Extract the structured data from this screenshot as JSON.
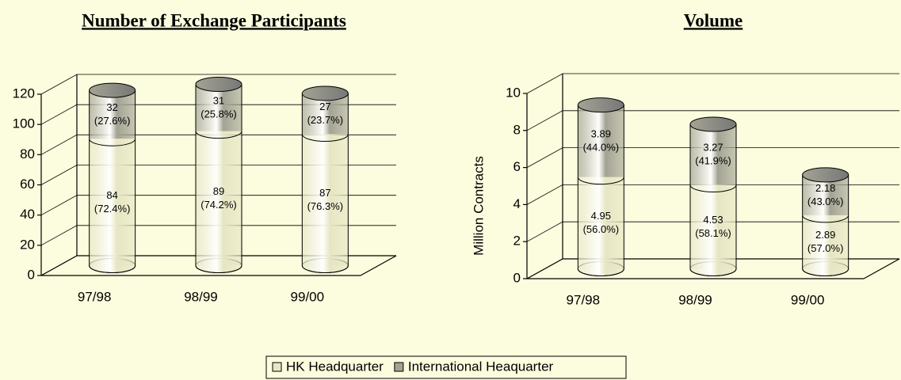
{
  "chart_data": [
    {
      "type": "bar3d_stacked",
      "title": "Number of Exchange Participants",
      "categories": [
        "97/98",
        "98/99",
        "99/00"
      ],
      "series": [
        {
          "name": "HK Headquarter",
          "color": "#e6e6c4",
          "values": [
            84,
            89,
            87
          ],
          "percent_labels": [
            "(72.4%)",
            "(74.2%)",
            "(76.3%)"
          ]
        },
        {
          "name": "International Heaquarter",
          "color": "#a3a394",
          "values": [
            32,
            31,
            27
          ],
          "percent_labels": [
            "(27.6%)",
            "(25.8%)",
            "(23.7%)"
          ]
        }
      ],
      "ylim": [
        0,
        120
      ],
      "yticks": [
        0,
        20,
        40,
        60,
        80,
        100,
        120
      ],
      "grid": true
    },
    {
      "type": "bar3d_stacked",
      "title": "Volume",
      "ylabel": "Million Contracts",
      "categories": [
        "97/98",
        "98/99",
        "99/00"
      ],
      "series": [
        {
          "name": "HK Headquarter",
          "color": "#e6e6c4",
          "values": [
            4.95,
            4.53,
            2.89
          ],
          "percent_labels": [
            "(56.0%)",
            "(58.1%)",
            "(57.0%)"
          ]
        },
        {
          "name": "International Heaquarter",
          "color": "#a3a394",
          "values": [
            3.89,
            3.27,
            2.18
          ],
          "percent_labels": [
            "(44.0%)",
            "(41.9%)",
            "(43.0%)"
          ]
        }
      ],
      "ylim": [
        0,
        10
      ],
      "yticks": [
        0,
        2,
        4,
        6,
        8,
        10
      ],
      "grid": true
    }
  ]
}
